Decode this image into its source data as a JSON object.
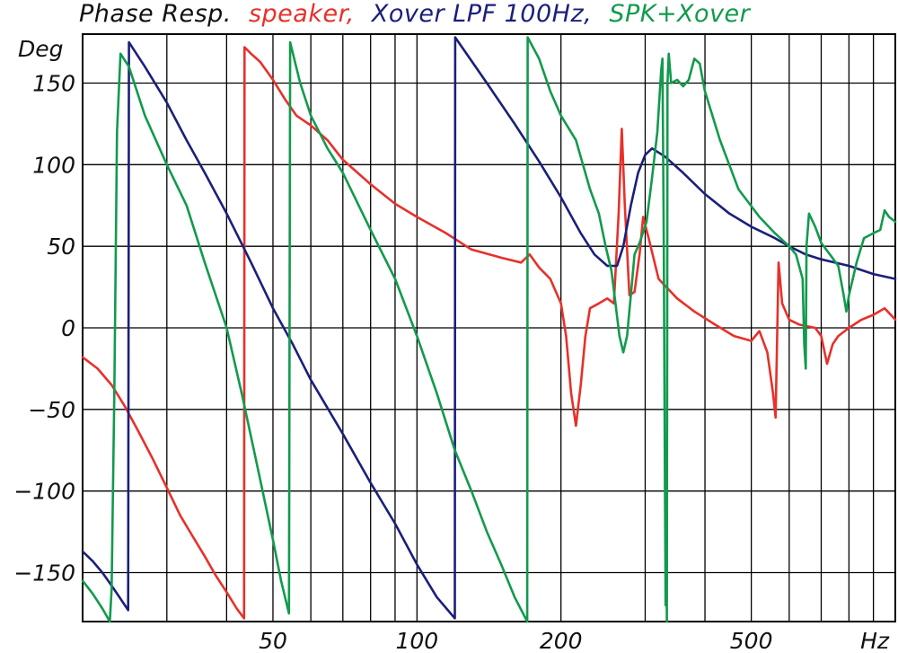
{
  "chart_data": {
    "type": "line",
    "title": "Phase Resp.",
    "ylabel": "Deg",
    "xlabel": "Hz",
    "x_scale": "log",
    "xlim": [
      20,
      1000
    ],
    "ylim": [
      -180,
      180
    ],
    "grid": true,
    "legend": "top (inline in title)",
    "x_ticks": [
      {
        "value": 50,
        "label": "50"
      },
      {
        "value": 100,
        "label": "100"
      },
      {
        "value": 200,
        "label": "200"
      },
      {
        "value": 500,
        "label": "500"
      }
    ],
    "x_gridlines": [
      20,
      30,
      40,
      50,
      60,
      70,
      80,
      90,
      100,
      200,
      300,
      400,
      500,
      600,
      700,
      800,
      900,
      1000
    ],
    "y_ticks": [
      {
        "value": 150,
        "label": "150"
      },
      {
        "value": 100,
        "label": "100"
      },
      {
        "value": 50,
        "label": "50"
      },
      {
        "value": 0,
        "label": "0"
      },
      {
        "value": -50,
        "label": "−50"
      },
      {
        "value": -100,
        "label": "−100"
      },
      {
        "value": -150,
        "label": "−150"
      }
    ],
    "y_gridlines": [
      -150,
      -100,
      -50,
      0,
      50,
      100,
      150
    ],
    "series": [
      {
        "name": "speaker,",
        "color": "#e8302a",
        "points": [
          [
            20,
            -18
          ],
          [
            21.5,
            -25
          ],
          [
            23,
            -35
          ],
          [
            24.5,
            -48
          ],
          [
            26,
            -62
          ],
          [
            28,
            -80
          ],
          [
            30,
            -98
          ],
          [
            32,
            -115
          ],
          [
            34,
            -128
          ],
          [
            36,
            -140
          ],
          [
            38,
            -152
          ],
          [
            40,
            -162
          ],
          [
            42,
            -172
          ],
          [
            43.5,
            -178
          ],
          [
            43.6,
            172
          ],
          [
            45,
            168
          ],
          [
            47,
            163
          ],
          [
            50,
            152
          ],
          [
            53,
            140
          ],
          [
            56,
            130
          ],
          [
            60,
            124
          ],
          [
            65,
            115
          ],
          [
            70,
            103
          ],
          [
            80,
            88
          ],
          [
            90,
            76
          ],
          [
            100,
            68
          ],
          [
            115,
            58
          ],
          [
            130,
            48
          ],
          [
            150,
            43
          ],
          [
            165,
            40
          ],
          [
            172,
            45
          ],
          [
            180,
            37
          ],
          [
            190,
            30
          ],
          [
            200,
            15
          ],
          [
            205,
            -5
          ],
          [
            210,
            -40
          ],
          [
            215,
            -60
          ],
          [
            220,
            -35
          ],
          [
            225,
            -5
          ],
          [
            230,
            12
          ],
          [
            240,
            15
          ],
          [
            250,
            18
          ],
          [
            258,
            15
          ],
          [
            264,
            70
          ],
          [
            268,
            122
          ],
          [
            272,
            75
          ],
          [
            278,
            20
          ],
          [
            285,
            22
          ],
          [
            292,
            45
          ],
          [
            297,
            68
          ],
          [
            305,
            55
          ],
          [
            320,
            30
          ],
          [
            350,
            18
          ],
          [
            380,
            10
          ],
          [
            420,
            2
          ],
          [
            460,
            -5
          ],
          [
            500,
            -8
          ],
          [
            520,
            -2
          ],
          [
            540,
            -15
          ],
          [
            555,
            -40
          ],
          [
            562,
            -55
          ],
          [
            570,
            40
          ],
          [
            580,
            15
          ],
          [
            600,
            5
          ],
          [
            630,
            2
          ],
          [
            680,
            0
          ],
          [
            700,
            -5
          ],
          [
            720,
            -22
          ],
          [
            740,
            -10
          ],
          [
            760,
            -5
          ],
          [
            800,
            0
          ],
          [
            850,
            5
          ],
          [
            900,
            8
          ],
          [
            950,
            12
          ],
          [
            1000,
            5
          ]
        ]
      },
      {
        "name": "Xover LPF 100Hz,",
        "color": "#1b1f7a",
        "points": [
          [
            20,
            -137
          ],
          [
            21,
            -143
          ],
          [
            22,
            -150
          ],
          [
            23,
            -158
          ],
          [
            24,
            -166
          ],
          [
            24.9,
            -173
          ],
          [
            25,
            175
          ],
          [
            27,
            160
          ],
          [
            30,
            138
          ],
          [
            33,
            115
          ],
          [
            36,
            95
          ],
          [
            40,
            70
          ],
          [
            45,
            40
          ],
          [
            50,
            12
          ],
          [
            55,
            -10
          ],
          [
            60,
            -32
          ],
          [
            70,
            -65
          ],
          [
            80,
            -95
          ],
          [
            90,
            -120
          ],
          [
            100,
            -145
          ],
          [
            110,
            -165
          ],
          [
            120,
            -178
          ],
          [
            120.2,
            178
          ],
          [
            140,
            150
          ],
          [
            160,
            125
          ],
          [
            180,
            102
          ],
          [
            200,
            80
          ],
          [
            220,
            58
          ],
          [
            235,
            45
          ],
          [
            250,
            38
          ],
          [
            262,
            38
          ],
          [
            270,
            50
          ],
          [
            280,
            75
          ],
          [
            290,
            95
          ],
          [
            300,
            106
          ],
          [
            310,
            110
          ],
          [
            330,
            105
          ],
          [
            360,
            95
          ],
          [
            400,
            82
          ],
          [
            450,
            70
          ],
          [
            500,
            62
          ],
          [
            560,
            55
          ],
          [
            600,
            50
          ],
          [
            650,
            45
          ],
          [
            700,
            42
          ],
          [
            800,
            38
          ],
          [
            900,
            33
          ],
          [
            1000,
            30
          ]
        ]
      },
      {
        "name": "SPK+Xover",
        "color": "#129a4d",
        "points": [
          [
            20,
            -155
          ],
          [
            21,
            -163
          ],
          [
            22,
            -172
          ],
          [
            22.8,
            -180
          ],
          [
            23,
            -160
          ],
          [
            23.3,
            -40
          ],
          [
            23.6,
            120
          ],
          [
            24,
            168
          ],
          [
            25,
            160
          ],
          [
            27,
            130
          ],
          [
            30,
            100
          ],
          [
            33,
            75
          ],
          [
            36,
            40
          ],
          [
            40,
            0
          ],
          [
            43,
            -40
          ],
          [
            46,
            -80
          ],
          [
            50,
            -130
          ],
          [
            52,
            -155
          ],
          [
            54,
            -175
          ],
          [
            54.3,
            175
          ],
          [
            57,
            150
          ],
          [
            60,
            130
          ],
          [
            65,
            110
          ],
          [
            70,
            95
          ],
          [
            80,
            60
          ],
          [
            90,
            30
          ],
          [
            100,
            -5
          ],
          [
            110,
            -40
          ],
          [
            120,
            -75
          ],
          [
            130,
            -100
          ],
          [
            140,
            -125
          ],
          [
            150,
            -145
          ],
          [
            160,
            -165
          ],
          [
            170,
            -180
          ],
          [
            170.4,
            178
          ],
          [
            180,
            165
          ],
          [
            190,
            145
          ],
          [
            200,
            130
          ],
          [
            215,
            115
          ],
          [
            230,
            85
          ],
          [
            240,
            70
          ],
          [
            248,
            50
          ],
          [
            255,
            35
          ],
          [
            260,
            15
          ],
          [
            265,
            -5
          ],
          [
            270,
            -15
          ],
          [
            275,
            -5
          ],
          [
            280,
            20
          ],
          [
            285,
            45
          ],
          [
            292,
            52
          ],
          [
            302,
            65
          ],
          [
            310,
            92
          ],
          [
            318,
            120
          ],
          [
            324,
            158
          ],
          [
            326,
            165
          ],
          [
            328,
            60
          ],
          [
            330,
            -100
          ],
          [
            331,
            -170
          ],
          [
            332,
            -120
          ],
          [
            333,
            -180
          ],
          [
            334,
            150
          ],
          [
            336,
            168
          ],
          [
            340,
            150
          ],
          [
            350,
            152
          ],
          [
            360,
            148
          ],
          [
            370,
            152
          ],
          [
            380,
            165
          ],
          [
            390,
            162
          ],
          [
            400,
            145
          ],
          [
            430,
            115
          ],
          [
            470,
            85
          ],
          [
            520,
            68
          ],
          [
            560,
            58
          ],
          [
            600,
            50
          ],
          [
            620,
            45
          ],
          [
            640,
            30
          ],
          [
            645,
            -10
          ],
          [
            650,
            -25
          ],
          [
            652,
            50
          ],
          [
            660,
            70
          ],
          [
            680,
            62
          ],
          [
            700,
            52
          ],
          [
            730,
            45
          ],
          [
            760,
            38
          ],
          [
            780,
            20
          ],
          [
            790,
            10
          ],
          [
            800,
            20
          ],
          [
            830,
            40
          ],
          [
            860,
            55
          ],
          [
            900,
            58
          ],
          [
            930,
            60
          ],
          [
            950,
            72
          ],
          [
            970,
            68
          ],
          [
            1000,
            65
          ]
        ]
      }
    ]
  }
}
